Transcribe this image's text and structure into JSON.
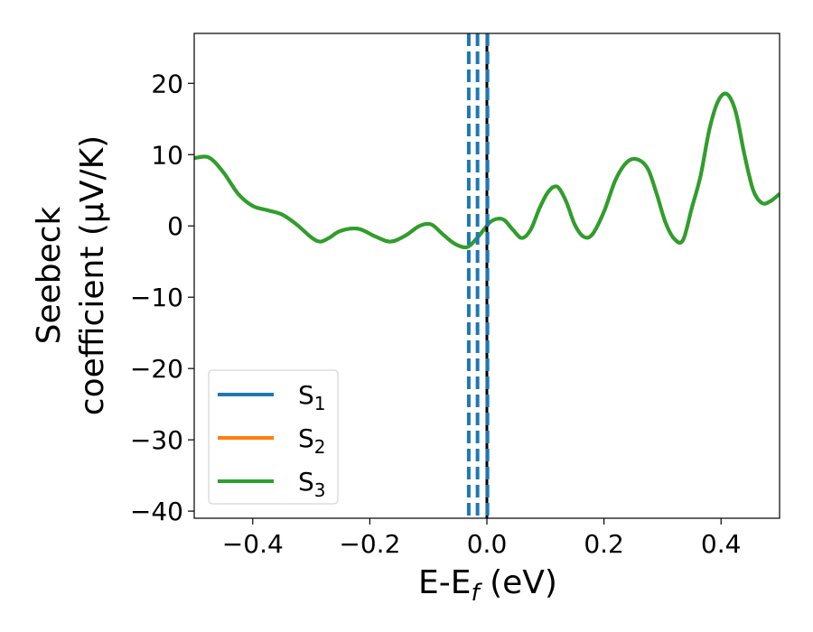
{
  "chart_data": {
    "type": "line",
    "xlabel": {
      "main": "E-E",
      "sub": "f",
      "unit": " (eV)"
    },
    "ylabel": {
      "line1": "Seebeck",
      "line2": "coefficient  (μV/K)"
    },
    "xlim": [
      -0.5,
      0.5
    ],
    "ylim": [
      -41,
      27
    ],
    "x_ticks": [
      -0.4,
      -0.2,
      0.0,
      0.2,
      0.4
    ],
    "x_tick_labels": [
      "−0.4",
      "−0.2",
      "0.0",
      "0.2",
      "0.4"
    ],
    "y_ticks": [
      -40,
      -30,
      -20,
      -10,
      0,
      10,
      20
    ],
    "y_tick_labels": [
      "−40",
      "−30",
      "−20",
      "−10",
      "0",
      "10",
      "20"
    ],
    "grid": false,
    "legend_position": "lower-left",
    "series": [
      {
        "name": "S",
        "subscript": "1",
        "color": "#1f77b4",
        "x": [
          -0.5,
          -0.475,
          -0.45,
          -0.425,
          -0.4,
          -0.375,
          -0.35,
          -0.325,
          -0.3,
          -0.285,
          -0.27,
          -0.25,
          -0.22,
          -0.19,
          -0.165,
          -0.14,
          -0.115,
          -0.095,
          -0.075,
          -0.055,
          -0.035,
          -0.02,
          -0.005,
          0.005,
          0.018,
          0.03,
          0.045,
          0.06,
          0.075,
          0.09,
          0.105,
          0.12,
          0.135,
          0.15,
          0.165,
          0.18,
          0.2,
          0.22,
          0.24,
          0.258,
          0.275,
          0.29,
          0.305,
          0.32,
          0.335,
          0.35,
          0.365,
          0.38,
          0.395,
          0.41,
          0.425,
          0.44,
          0.455,
          0.47,
          0.485,
          0.5
        ],
        "y": [
          9.5,
          9.6,
          7.5,
          4.5,
          2.8,
          2.2,
          1.6,
          0.2,
          -1.6,
          -2.2,
          -1.7,
          -0.7,
          -0.4,
          -1.5,
          -2.2,
          -1.4,
          0.0,
          0.2,
          -1.2,
          -2.5,
          -3.0,
          -2.0,
          -0.5,
          0.5,
          1.0,
          0.8,
          -0.6,
          -1.7,
          -0.5,
          2.5,
          4.8,
          5.5,
          3.5,
          0.2,
          -1.5,
          -1.2,
          2.0,
          6.5,
          9.0,
          9.3,
          8.0,
          4.5,
          0.5,
          -1.8,
          -2.0,
          2.5,
          7.0,
          13.5,
          17.5,
          18.5,
          16.0,
          10.0,
          5.0,
          3.2,
          3.5,
          4.5
        ]
      },
      {
        "name": "S",
        "subscript": "2",
        "color": "#ff7f0e",
        "x": [
          -0.5,
          -0.475,
          -0.45,
          -0.425,
          -0.4,
          -0.375,
          -0.35,
          -0.325,
          -0.3,
          -0.285,
          -0.27,
          -0.25,
          -0.22,
          -0.19,
          -0.165,
          -0.14,
          -0.115,
          -0.095,
          -0.075,
          -0.055,
          -0.035,
          -0.02,
          -0.005,
          0.005,
          0.018,
          0.03,
          0.045,
          0.06,
          0.075,
          0.09,
          0.105,
          0.12,
          0.135,
          0.15,
          0.165,
          0.18,
          0.2,
          0.22,
          0.24,
          0.258,
          0.275,
          0.29,
          0.305,
          0.32,
          0.335,
          0.35,
          0.365,
          0.38,
          0.395,
          0.41,
          0.425,
          0.44,
          0.455,
          0.47,
          0.485,
          0.5
        ],
        "y": [
          9.5,
          9.6,
          7.5,
          4.5,
          2.8,
          2.2,
          1.6,
          0.2,
          -1.6,
          -2.2,
          -1.7,
          -0.7,
          -0.4,
          -1.5,
          -2.2,
          -1.4,
          0.0,
          0.2,
          -1.2,
          -2.5,
          -3.0,
          -2.0,
          -0.5,
          0.5,
          1.0,
          0.8,
          -0.6,
          -1.7,
          -0.5,
          2.5,
          4.8,
          5.5,
          3.5,
          0.2,
          -1.5,
          -1.2,
          2.0,
          6.5,
          9.0,
          9.3,
          8.0,
          4.5,
          0.5,
          -1.8,
          -2.0,
          2.5,
          7.0,
          13.5,
          17.5,
          18.5,
          16.0,
          10.0,
          5.0,
          3.2,
          3.5,
          4.5
        ]
      },
      {
        "name": "S",
        "subscript": "3",
        "color": "#2ca02c",
        "x": [
          -0.5,
          -0.475,
          -0.45,
          -0.425,
          -0.4,
          -0.375,
          -0.35,
          -0.325,
          -0.3,
          -0.285,
          -0.27,
          -0.25,
          -0.22,
          -0.19,
          -0.165,
          -0.14,
          -0.115,
          -0.095,
          -0.075,
          -0.055,
          -0.035,
          -0.02,
          -0.005,
          0.005,
          0.018,
          0.03,
          0.045,
          0.06,
          0.075,
          0.09,
          0.105,
          0.12,
          0.135,
          0.15,
          0.165,
          0.18,
          0.2,
          0.22,
          0.24,
          0.258,
          0.275,
          0.29,
          0.305,
          0.32,
          0.335,
          0.35,
          0.365,
          0.38,
          0.395,
          0.41,
          0.425,
          0.44,
          0.455,
          0.47,
          0.485,
          0.5
        ],
        "y": [
          9.5,
          9.6,
          7.5,
          4.5,
          2.8,
          2.2,
          1.6,
          0.2,
          -1.6,
          -2.2,
          -1.7,
          -0.7,
          -0.4,
          -1.5,
          -2.2,
          -1.4,
          0.0,
          0.2,
          -1.2,
          -2.5,
          -3.0,
          -2.0,
          -0.5,
          0.5,
          1.0,
          0.8,
          -0.6,
          -1.7,
          -0.5,
          2.5,
          4.8,
          5.5,
          3.5,
          0.2,
          -1.5,
          -1.2,
          2.0,
          6.5,
          9.0,
          9.3,
          8.0,
          4.5,
          0.5,
          -1.8,
          -2.0,
          2.5,
          7.0,
          13.5,
          17.5,
          18.5,
          16.0,
          10.0,
          5.0,
          3.2,
          3.5,
          4.5
        ]
      }
    ],
    "vertical_lines": [
      {
        "x": -0.031,
        "color": "#1f77b4",
        "style": "dashed"
      },
      {
        "x": -0.016,
        "color": "#1f77b4",
        "style": "dashed"
      },
      {
        "x": 0.0,
        "color": "#000000",
        "style": "solid"
      },
      {
        "x": 0.001,
        "color": "#1f77b4",
        "style": "dashed"
      }
    ]
  }
}
